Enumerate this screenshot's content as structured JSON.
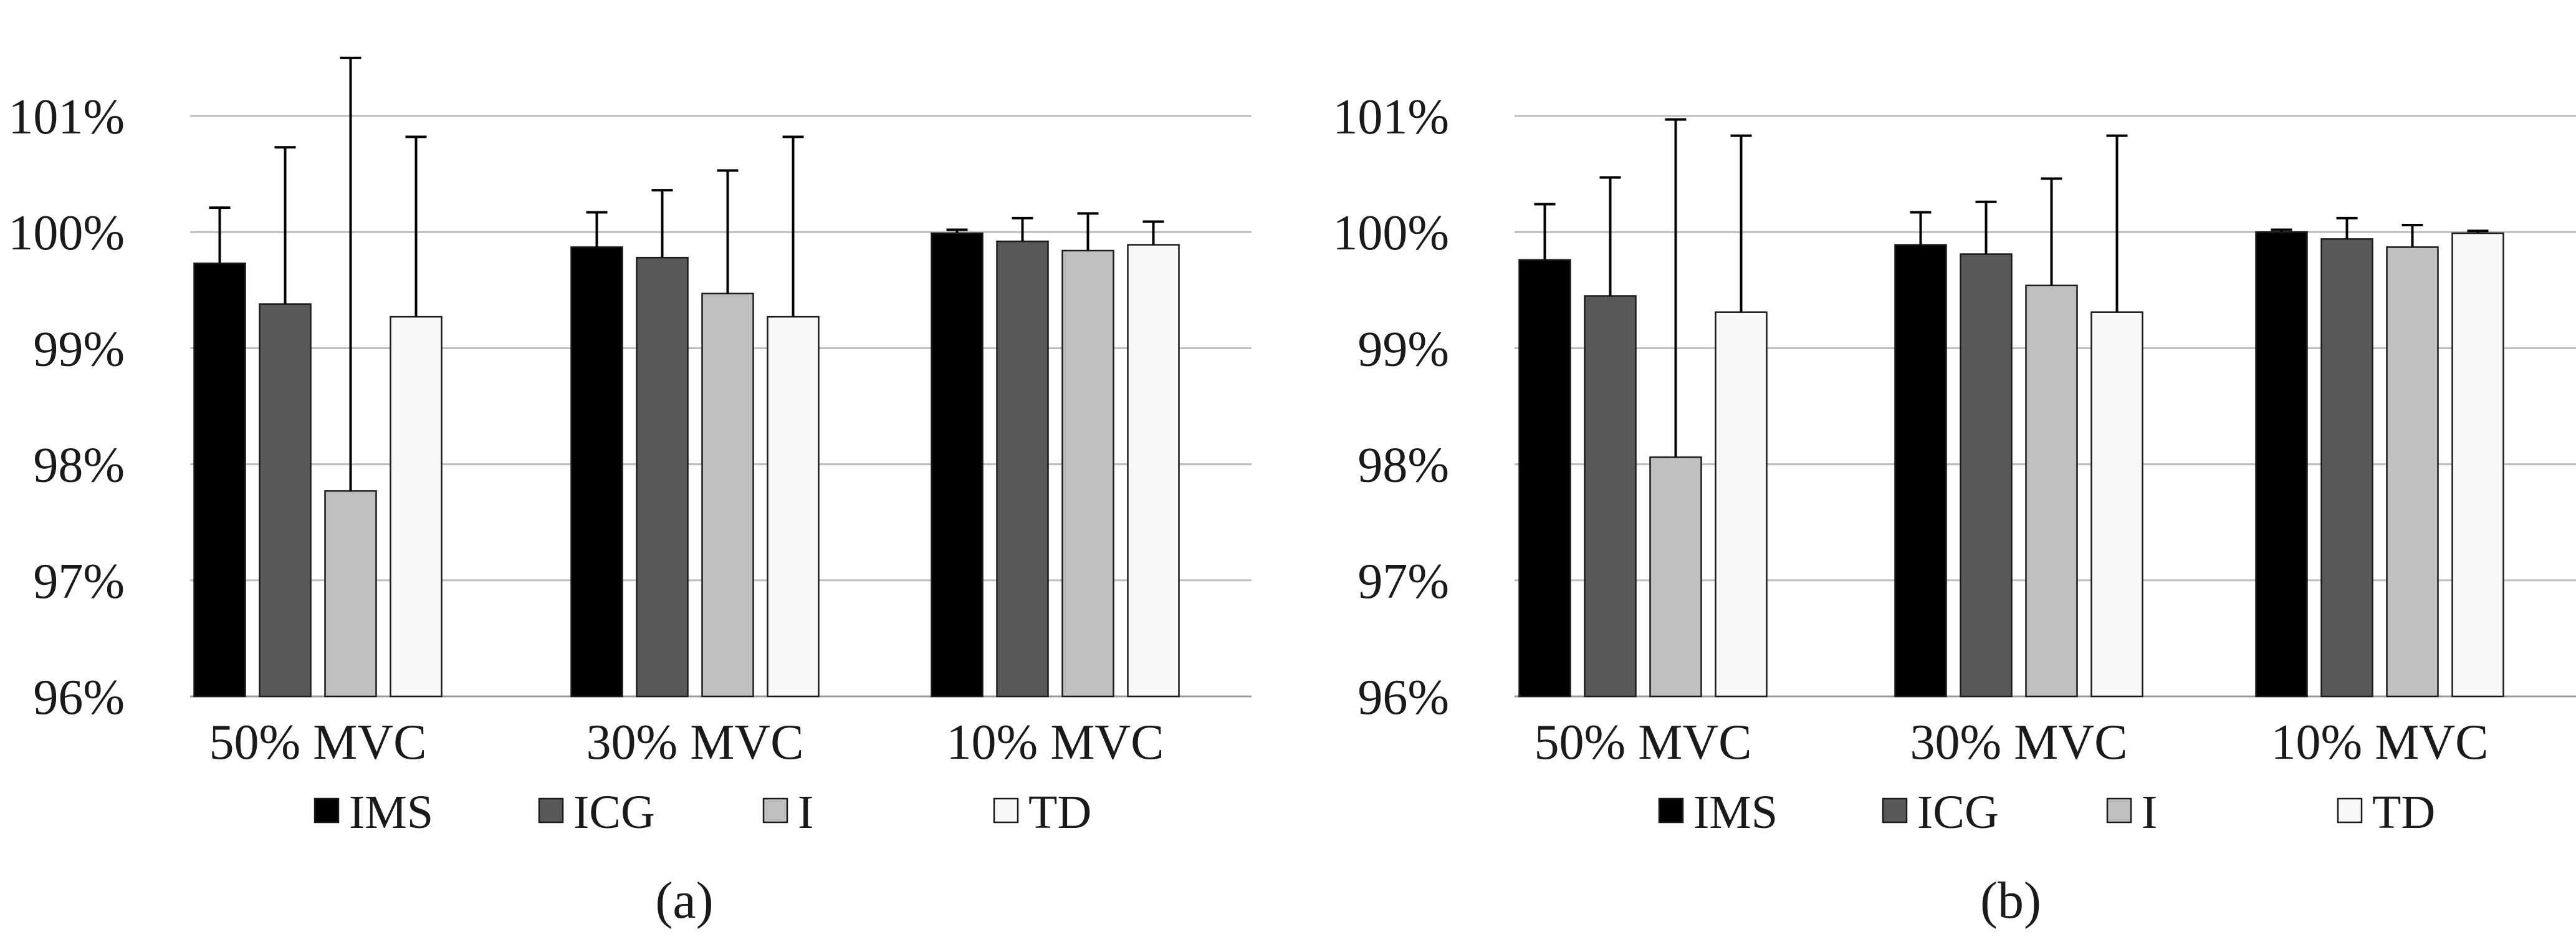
{
  "chart_data": [
    {
      "type": "bar",
      "panel_label": "(a)",
      "categories": [
        "50% MVC",
        "30% MVC",
        "10% MVC"
      ],
      "y_unit": "%",
      "ylim": [
        96,
        101.5
      ],
      "yticks": [
        96,
        97,
        98,
        99,
        100,
        101
      ],
      "ytick_labels": [
        "96%",
        "97%",
        "98%",
        "99%",
        "100%",
        "101%"
      ],
      "grid": true,
      "legend_position": "bottom",
      "series": [
        {
          "name": "IMS",
          "values": [
            99.73,
            99.87,
            99.99
          ],
          "errors": [
            0.48,
            0.3,
            0.03
          ]
        },
        {
          "name": "ICG",
          "values": [
            99.38,
            99.78,
            99.92
          ],
          "errors": [
            1.35,
            0.58,
            0.2
          ]
        },
        {
          "name": "I",
          "values": [
            97.77,
            99.47,
            99.84
          ],
          "errors": [
            3.73,
            1.06,
            0.32
          ]
        },
        {
          "name": "TD",
          "values": [
            99.27,
            99.27,
            99.89
          ],
          "errors": [
            1.55,
            1.55,
            0.2
          ]
        }
      ]
    },
    {
      "type": "bar",
      "panel_label": "(b)",
      "categories": [
        "50% MVC",
        "30% MVC",
        "10% MVC"
      ],
      "y_unit": "%",
      "ylim": [
        96,
        101.5
      ],
      "yticks": [
        96,
        97,
        98,
        99,
        100,
        101
      ],
      "ytick_labels": [
        "96%",
        "97%",
        "98%",
        "99%",
        "100%",
        "101%"
      ],
      "grid": true,
      "legend_position": "bottom",
      "series": [
        {
          "name": "IMS",
          "values": [
            99.76,
            99.89,
            100.0
          ],
          "errors": [
            0.48,
            0.28,
            0.02
          ]
        },
        {
          "name": "ICG",
          "values": [
            99.45,
            99.81,
            99.94
          ],
          "errors": [
            1.02,
            0.45,
            0.18
          ]
        },
        {
          "name": "I",
          "values": [
            98.06,
            99.54,
            99.87
          ],
          "errors": [
            2.91,
            0.92,
            0.19
          ]
        },
        {
          "name": "TD",
          "values": [
            99.31,
            99.31,
            99.99
          ],
          "errors": [
            1.52,
            1.52,
            0.02
          ]
        }
      ]
    }
  ],
  "style": {
    "series_colors": [
      "#000000",
      "#595959",
      "#bfbfbf",
      "#f8f8f8"
    ],
    "grid_color": "#bdbdbd"
  }
}
